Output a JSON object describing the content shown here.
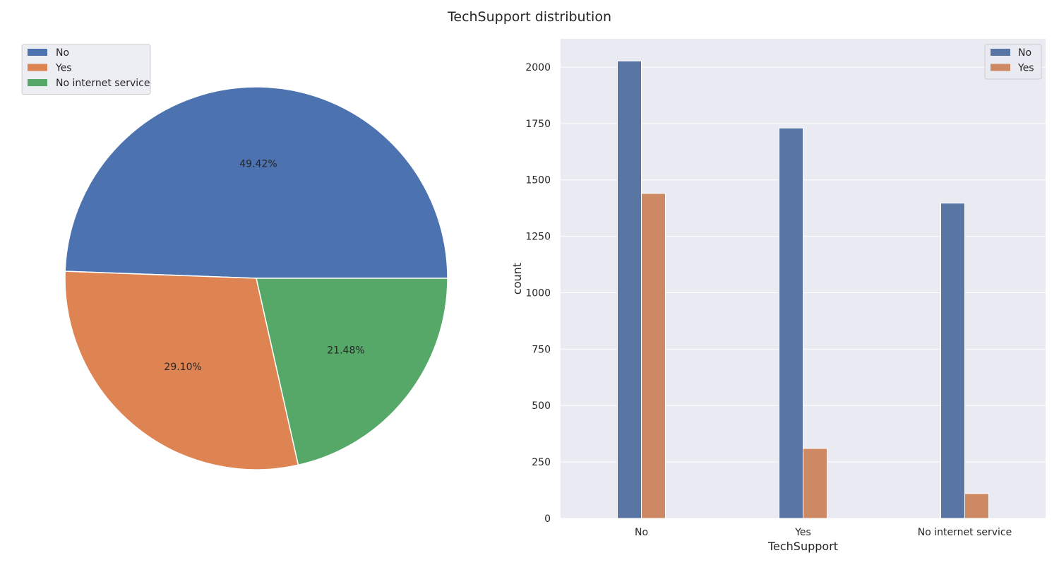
{
  "figure": {
    "title": "TechSupport distribution"
  },
  "colors": {
    "pie_blue": "#4C72B0",
    "pie_orange": "#DD8452",
    "pie_green": "#55A868",
    "bar_blue": "#5875A4",
    "bar_orange": "#CC8963",
    "panel_bg": "#EAEAF2",
    "grid": "#FFFFFF"
  },
  "chart_data": [
    {
      "type": "pie",
      "labels": [
        "No",
        "Yes",
        "No internet service"
      ],
      "values": [
        49.42,
        29.1,
        21.48
      ],
      "pct_labels": [
        "49.42%",
        "29.10%",
        "21.48%"
      ],
      "start_angle_deg": 0,
      "direction": "counterclockwise",
      "legend": {
        "placement": "top-left",
        "entries": [
          "No",
          "Yes",
          "No internet service"
        ]
      }
    },
    {
      "type": "bar",
      "xlabel": "TechSupport",
      "ylabel": "count",
      "categories": [
        "No",
        "Yes",
        "No internet service"
      ],
      "series": [
        {
          "name": "No",
          "values": [
            2027,
            1730,
            1397
          ]
        },
        {
          "name": "Yes",
          "values": [
            1440,
            310,
            110
          ]
        }
      ],
      "ylim": [
        0,
        2125
      ],
      "yticks": [
        0,
        250,
        500,
        750,
        1000,
        1250,
        1500,
        1750,
        2000
      ],
      "grid": true,
      "legend": {
        "placement": "top-right",
        "entries": [
          "No",
          "Yes"
        ]
      }
    }
  ]
}
